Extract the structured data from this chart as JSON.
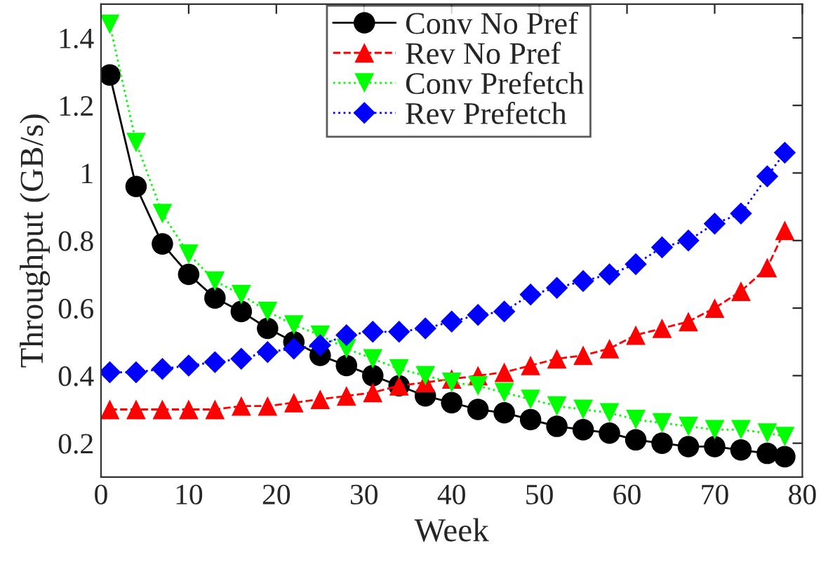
{
  "chart_data": {
    "type": "line",
    "xlabel": "Week",
    "ylabel": "Throughput (GB/s)",
    "x": [
      1,
      4,
      7,
      10,
      13,
      16,
      19,
      22,
      25,
      28,
      31,
      34,
      37,
      40,
      43,
      46,
      49,
      52,
      55,
      58,
      61,
      64,
      67,
      70,
      73,
      76,
      78
    ],
    "series": [
      {
        "name": "Conv No Pref",
        "color": "#000000",
        "marker": "circle",
        "line_style": "solid",
        "values": [
          1.29,
          0.96,
          0.79,
          0.7,
          0.63,
          0.59,
          0.54,
          0.5,
          0.46,
          0.43,
          0.4,
          0.37,
          0.34,
          0.32,
          0.3,
          0.29,
          0.27,
          0.25,
          0.24,
          0.23,
          0.21,
          0.2,
          0.19,
          0.19,
          0.18,
          0.17,
          0.16
        ]
      },
      {
        "name": "Rev No Pref",
        "color": "#ff0000",
        "marker": "triangle",
        "line_style": "dashed",
        "values": [
          0.3,
          0.3,
          0.3,
          0.3,
          0.3,
          0.31,
          0.31,
          0.32,
          0.33,
          0.34,
          0.35,
          0.37,
          0.38,
          0.39,
          0.4,
          0.41,
          0.43,
          0.45,
          0.46,
          0.48,
          0.52,
          0.54,
          0.56,
          0.6,
          0.65,
          0.72,
          0.83
        ]
      },
      {
        "name": "Conv Prefetch",
        "color": "#00ff00",
        "marker": "triangle_down",
        "line_style": "dotted",
        "values": [
          1.44,
          1.09,
          0.88,
          0.76,
          0.68,
          0.64,
          0.59,
          0.55,
          0.52,
          0.48,
          0.45,
          0.42,
          0.4,
          0.38,
          0.37,
          0.35,
          0.33,
          0.31,
          0.3,
          0.29,
          0.27,
          0.26,
          0.25,
          0.24,
          0.24,
          0.23,
          0.22
        ]
      },
      {
        "name": "Rev Prefetch",
        "color": "#0000ff",
        "marker": "diamond",
        "line_style": "dotted",
        "values": [
          0.41,
          0.41,
          0.42,
          0.43,
          0.44,
          0.45,
          0.47,
          0.48,
          0.49,
          0.52,
          0.53,
          0.53,
          0.54,
          0.56,
          0.58,
          0.59,
          0.64,
          0.66,
          0.68,
          0.7,
          0.73,
          0.78,
          0.8,
          0.85,
          0.88,
          0.99,
          1.06
        ]
      }
    ],
    "xlim": [
      0,
      80
    ],
    "ylim": [
      0.1,
      1.5
    ],
    "xticks": [
      0,
      10,
      20,
      30,
      40,
      50,
      60,
      70,
      80
    ],
    "yticks": [
      0.2,
      0.4,
      0.6,
      0.8,
      1,
      1.2,
      1.4
    ],
    "grid": false,
    "legend": "top"
  }
}
